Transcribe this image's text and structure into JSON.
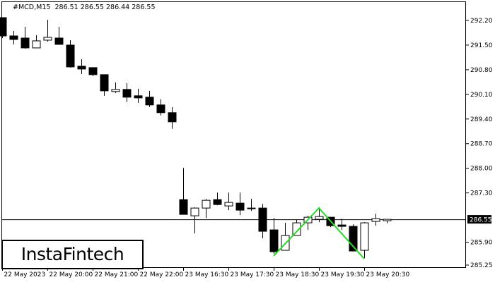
{
  "header": {
    "symbol": "#MCD,M15",
    "ohlc_readout": "286.51 286.55 286.44 286.55"
  },
  "logo": {
    "text": "InstaFintech"
  },
  "chart_data": {
    "type": "candlestick",
    "title": "#MCD,M15",
    "ylim": [
      285.25,
      292.2
    ],
    "y_ticks": [
      "292.20",
      "291.50",
      "290.80",
      "290.10",
      "289.40",
      "288.70",
      "288.00",
      "287.30",
      "285.90",
      "285.25"
    ],
    "current_price": "286.55",
    "x_ticks": [
      {
        "index": 0,
        "label": "22 May 2023"
      },
      {
        "index": 4,
        "label": "22 May 20:00"
      },
      {
        "index": 8,
        "label": "22 May 21:00"
      },
      {
        "index": 12,
        "label": "22 May 22:00"
      },
      {
        "index": 16,
        "label": "23 May 16:30"
      },
      {
        "index": 20,
        "label": "23 May 17:30"
      },
      {
        "index": 24,
        "label": "23 May 18:30"
      },
      {
        "index": 28,
        "label": "23 May 19:30"
      },
      {
        "index": 32,
        "label": "23 May 20:30"
      }
    ],
    "candles_ohlc": [
      [
        292.28,
        292.28,
        291.7,
        291.76
      ],
      [
        291.76,
        291.9,
        291.52,
        291.66
      ],
      [
        291.7,
        292.02,
        291.4,
        291.42
      ],
      [
        291.42,
        291.78,
        291.42,
        291.62
      ],
      [
        291.64,
        292.22,
        291.6,
        291.72
      ],
      [
        291.7,
        292.02,
        291.52,
        291.52
      ],
      [
        291.5,
        291.64,
        290.86,
        290.88
      ],
      [
        290.9,
        291.1,
        290.68,
        290.82
      ],
      [
        290.86,
        290.86,
        290.62,
        290.66
      ],
      [
        290.66,
        290.66,
        290.06,
        290.2
      ],
      [
        290.18,
        290.44,
        290.14,
        290.24
      ],
      [
        290.24,
        290.42,
        289.88,
        290.02
      ],
      [
        290.06,
        290.26,
        289.86,
        290.0
      ],
      [
        290.02,
        290.2,
        289.74,
        289.8
      ],
      [
        289.8,
        289.96,
        289.5,
        289.58
      ],
      [
        289.58,
        289.74,
        289.12,
        289.32
      ],
      [
        287.11,
        288.01,
        286.69,
        286.69
      ],
      [
        286.65,
        286.89,
        286.15,
        286.87
      ],
      [
        286.87,
        287.13,
        286.59,
        287.09
      ],
      [
        287.11,
        287.31,
        286.95,
        286.97
      ],
      [
        286.93,
        287.31,
        286.81,
        287.03
      ],
      [
        287.01,
        287.31,
        286.67,
        286.81
      ],
      [
        286.87,
        287.13,
        286.79,
        286.85
      ],
      [
        286.87,
        286.99,
        286.01,
        286.21
      ],
      [
        286.25,
        286.59,
        285.57,
        285.63
      ],
      [
        285.67,
        286.45,
        285.67,
        286.09
      ],
      [
        286.09,
        286.55,
        286.09,
        286.45
      ],
      [
        286.45,
        286.65,
        286.25,
        286.61
      ],
      [
        286.55,
        286.89,
        286.47,
        286.63
      ],
      [
        286.61,
        286.61,
        286.33,
        286.37
      ],
      [
        286.39,
        286.57,
        286.25,
        286.35
      ],
      [
        286.35,
        286.41,
        285.65,
        285.65
      ],
      [
        285.67,
        286.47,
        285.45,
        286.45
      ],
      [
        286.49,
        286.71,
        286.37,
        286.57
      ],
      [
        286.51,
        286.55,
        286.44,
        286.55
      ]
    ],
    "pattern_line": {
      "color": "#22dd22",
      "points": [
        [
          24,
          285.51
        ],
        [
          28,
          286.87
        ],
        [
          32,
          285.43
        ]
      ]
    },
    "colors": {
      "bull_body": "#ffffff",
      "bear_body": "#000000",
      "outline": "#000000"
    }
  }
}
